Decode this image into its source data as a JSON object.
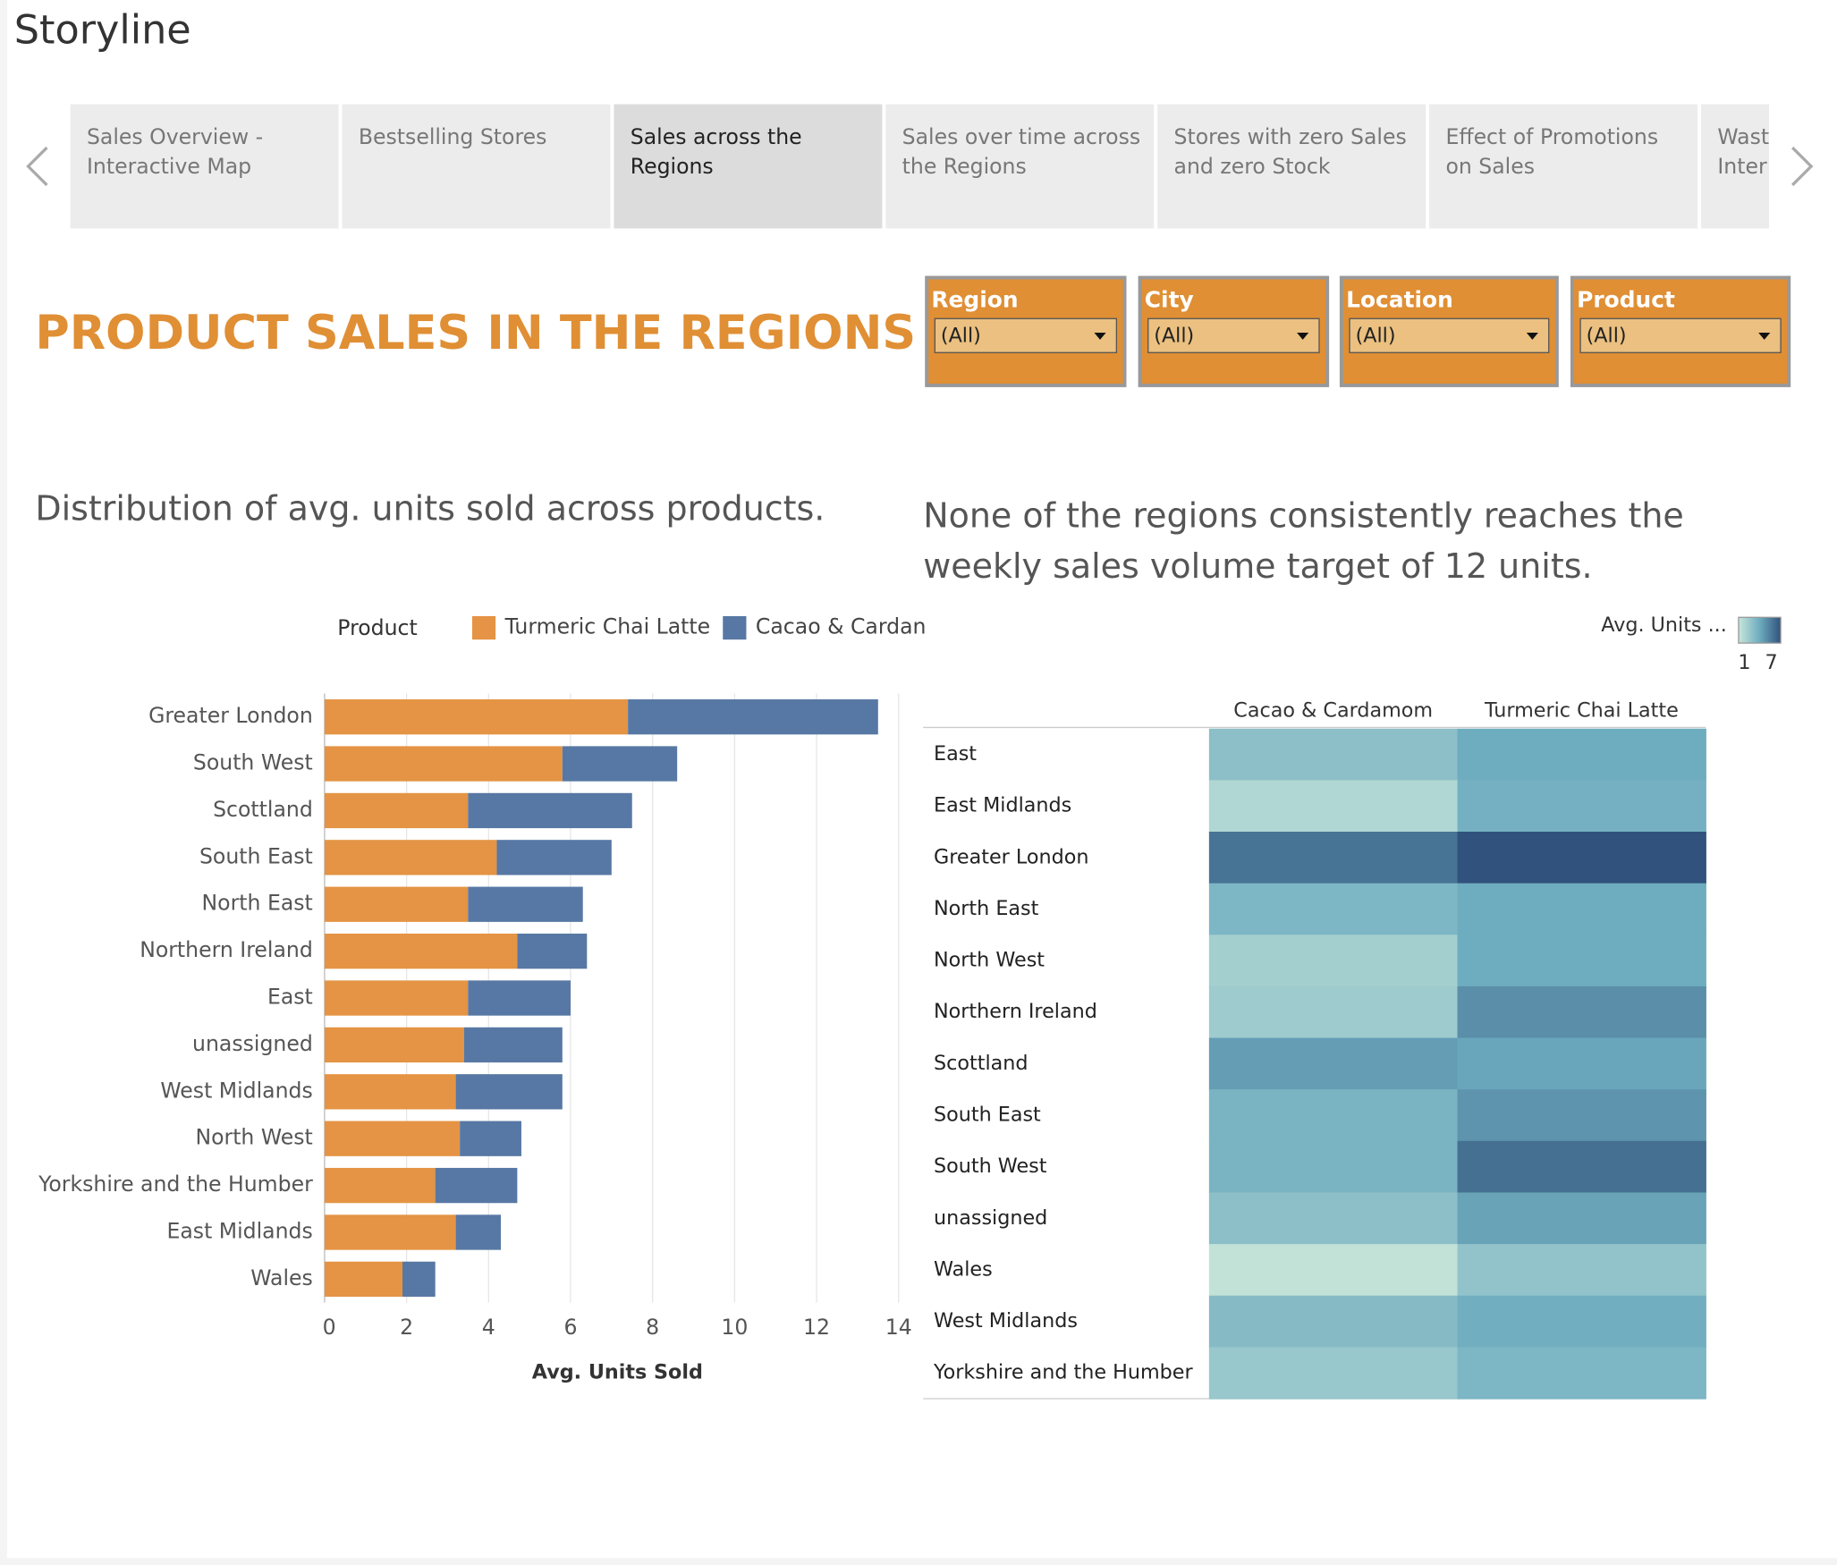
{
  "storyline": "Storyline",
  "tabs": [
    [
      "Sales Overview -",
      "Interactive Map"
    ],
    [
      "Bestselling Stores"
    ],
    [
      "Sales across the",
      "Regions"
    ],
    [
      "Sales over time across",
      "the Regions"
    ],
    [
      "Stores with zero Sales",
      "and zero Stock"
    ],
    [
      "Effect of Promotions",
      "on Sales"
    ],
    [
      "Wast",
      "Inter"
    ]
  ],
  "active_tab": 2,
  "dashboard_title": "PRODUCT SALES IN THE REGIONS",
  "filters": [
    {
      "label": "Region",
      "value": "(All)"
    },
    {
      "label": "City",
      "value": "(All)"
    },
    {
      "label": "Location",
      "value": "(All)"
    },
    {
      "label": "Product",
      "value": "(All)"
    }
  ],
  "chart_data": [
    {
      "type": "bar",
      "orientation": "horizontal",
      "stacked": true,
      "subtitle": "Distribution of avg. units sold across products.",
      "legend_title": "Product",
      "categories": [
        "Greater London",
        "South West",
        "Scottland",
        "South East",
        "North East",
        "Northern Ireland",
        "East",
        "unassigned",
        "West Midlands",
        "North West",
        "Yorkshire and the Humber",
        "East Midlands",
        "Wales"
      ],
      "series": [
        {
          "name": "Turmeric Chai Latte",
          "color": "#e49444",
          "values": [
            7.4,
            5.8,
            3.5,
            4.2,
            3.5,
            4.7,
            3.5,
            3.4,
            3.2,
            3.3,
            2.7,
            3.2,
            1.9
          ]
        },
        {
          "name": "Cacao & Cardan",
          "color": "#5778a4",
          "values": [
            6.1,
            2.8,
            4.0,
            2.8,
            2.8,
            1.7,
            2.5,
            2.4,
            2.6,
            1.5,
            2.0,
            1.1,
            0.8
          ]
        }
      ],
      "xlim": [
        0,
        14
      ],
      "xticks": [
        0,
        2,
        4,
        6,
        8,
        10,
        12,
        14
      ],
      "xlabel": "Avg. Units Sold",
      "grid": true
    },
    {
      "type": "heatmap",
      "subtitle": [
        "None of the regions consistently reaches the",
        "weekly sales volume target of 12 units."
      ],
      "legend_title": "Avg. Units ...",
      "columns": [
        "Cacao & Cardamom",
        "Turmeric Chai Latte"
      ],
      "rows": [
        "East",
        "East Midlands",
        "Greater London",
        "North East",
        "North West",
        "Northern Ireland",
        "Scottland",
        "South East",
        "South West",
        "unassigned",
        "Wales",
        "West Midlands",
        "Yorkshire and the Humber"
      ],
      "values": [
        [
          3.0,
          4.0
        ],
        [
          1.8,
          3.8
        ],
        [
          5.9,
          7.0
        ],
        [
          3.5,
          4.0
        ],
        [
          2.2,
          4.0
        ],
        [
          2.4,
          5.0
        ],
        [
          4.5,
          4.2
        ],
        [
          3.6,
          4.8
        ],
        [
          3.6,
          6.0
        ],
        [
          3.0,
          4.3
        ],
        [
          1.2,
          2.8
        ],
        [
          3.2,
          3.9
        ],
        [
          2.6,
          3.5
        ]
      ],
      "clim": [
        1,
        7
      ],
      "cticks": [
        1,
        7
      ],
      "colors": [
        "#c8e6da",
        "#6eacbf",
        "#31527c"
      ]
    }
  ]
}
